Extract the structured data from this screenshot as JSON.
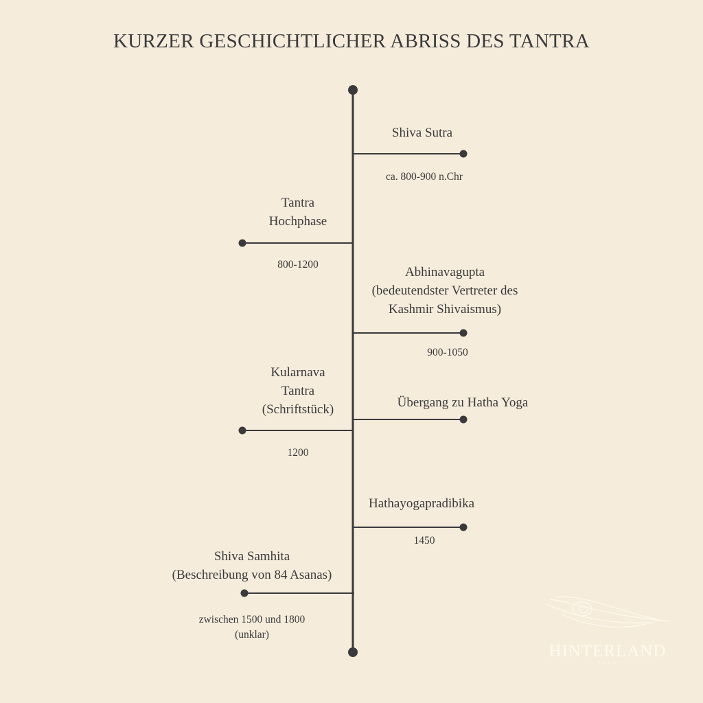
{
  "title": "KURZER GESCHICHTLICHER ABRISS DES TANTRA",
  "events": [
    {
      "side": "right",
      "title_lines": [
        "Shiva Sutra"
      ],
      "date_lines": [
        "ca. 800-900 n.Chr"
      ]
    },
    {
      "side": "left",
      "title_lines": [
        "Tantra",
        "Hochphase"
      ],
      "date_lines": [
        "800-1200"
      ]
    },
    {
      "side": "right",
      "title_lines": [
        "Abhinavagupta",
        "(bedeutendster Vertreter des",
        "Kashmir Shivaismus)"
      ],
      "date_lines": [
        "900-1050"
      ]
    },
    {
      "side": "left",
      "title_lines": [
        "Kularnava",
        "Tantra",
        "(Schriftstück)"
      ],
      "date_lines": [
        "1200"
      ]
    },
    {
      "side": "right",
      "title_lines": [
        "Übergang zu Hatha Yoga"
      ],
      "date_lines": []
    },
    {
      "side": "right",
      "title_lines": [
        "Hathayogapradibika"
      ],
      "date_lines": [
        "1450"
      ]
    },
    {
      "side": "left",
      "title_lines": [
        "Shiva Samhita",
        "(Beschreibung von 84 Asanas)"
      ],
      "date_lines": [
        "zwischen 1500 und 1800",
        "(unklar)"
      ]
    }
  ],
  "logo": {
    "name": "HINTERLAND",
    "sub": "YOGA",
    "icon": "peacock-feather-icon"
  },
  "colors": {
    "background": "#f5ecdb",
    "ink": "#3a3a3c",
    "logo": "#fffaf0"
  }
}
